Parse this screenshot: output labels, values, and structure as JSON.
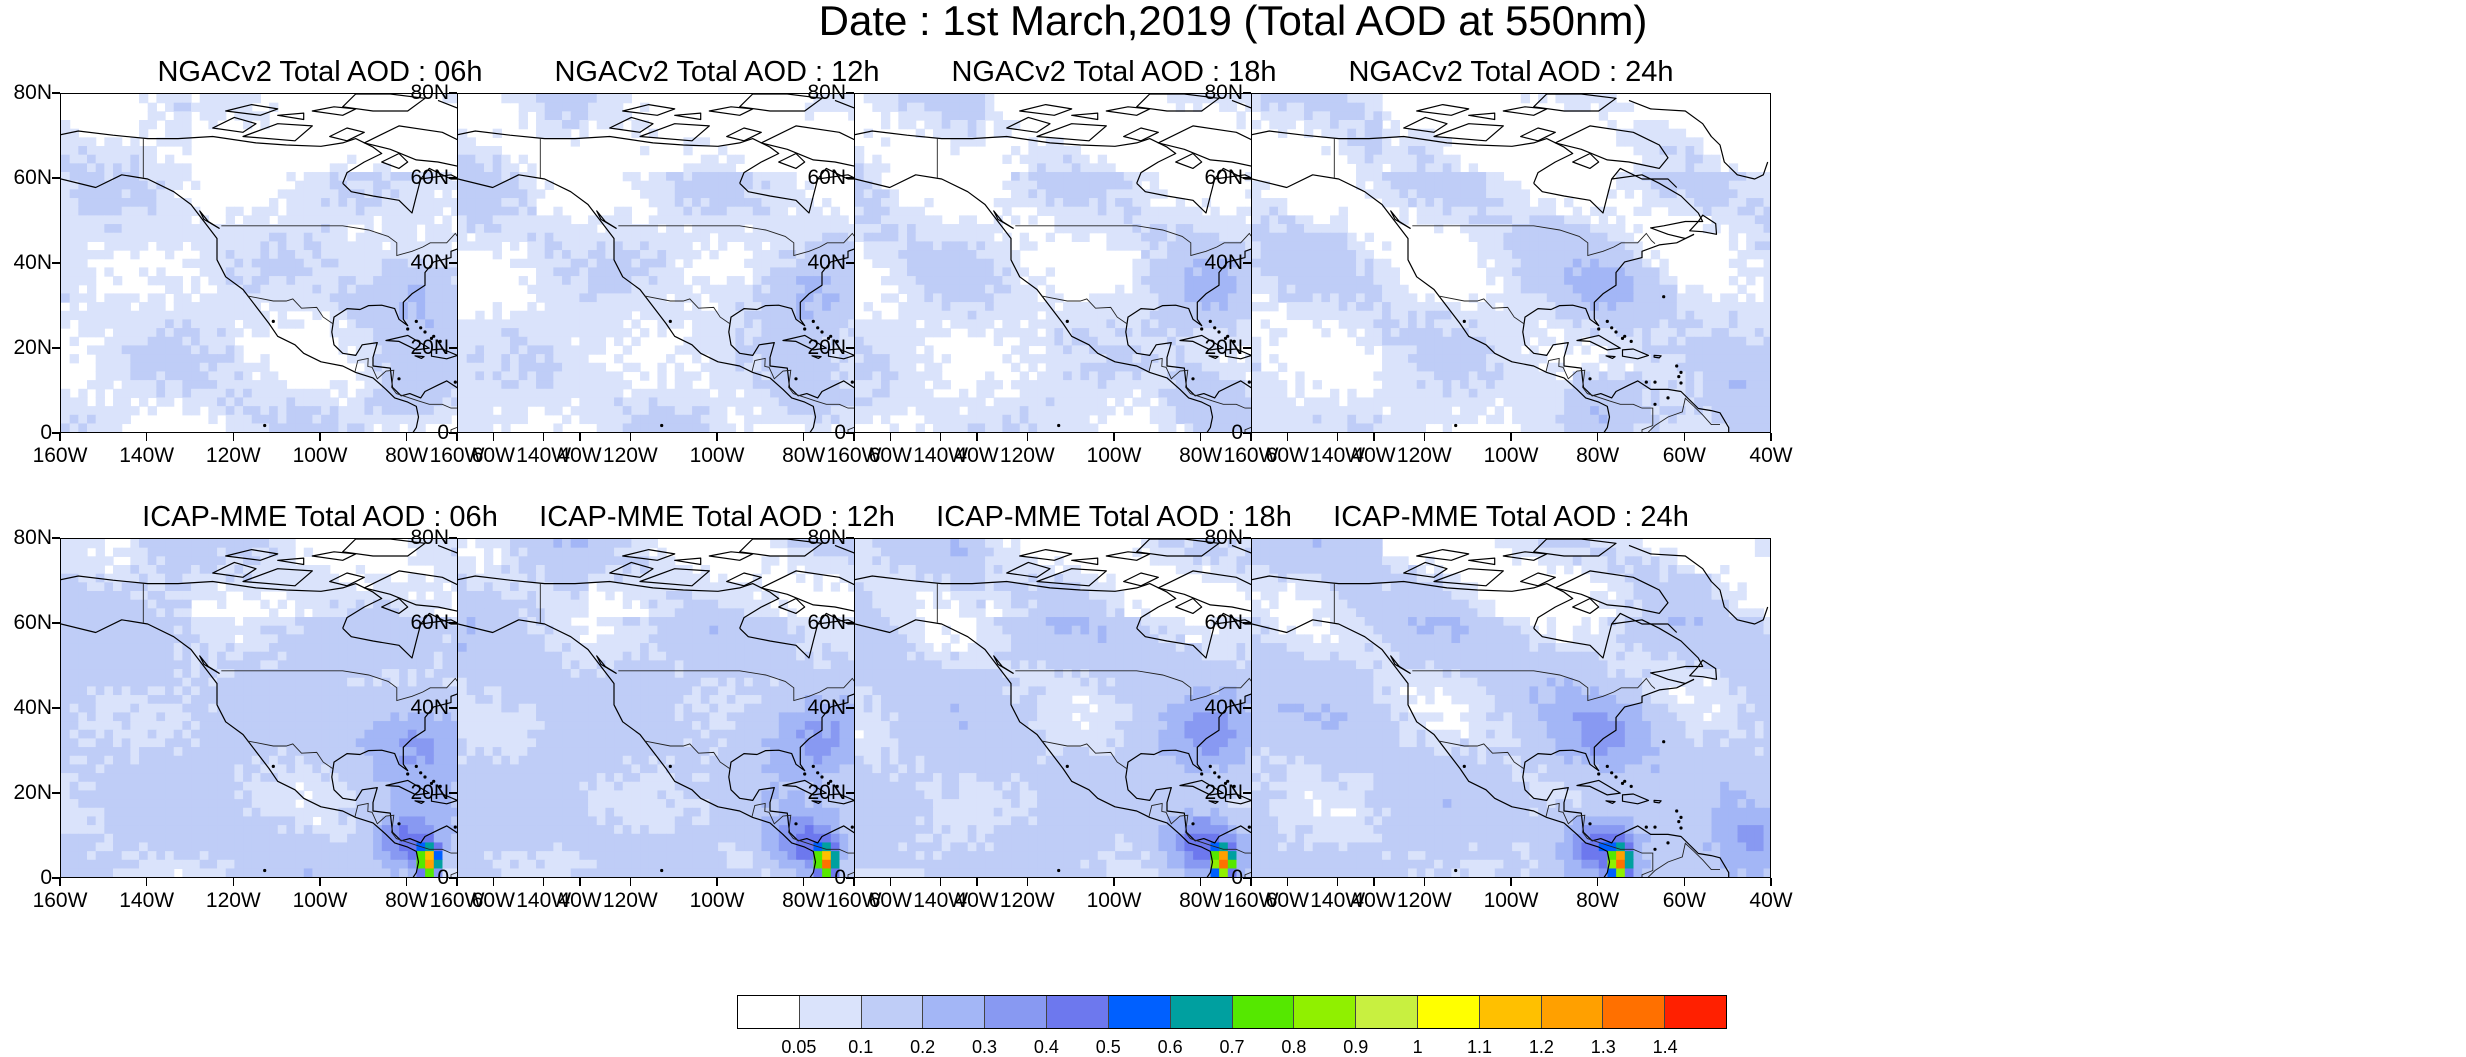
{
  "figure": {
    "title": "Date : 1st March,2019 (Total AOD at 550nm)"
  },
  "panels": [
    {
      "title": "NGACv2 Total AOD : 06h",
      "model": "NGACv2",
      "hour": "06h"
    },
    {
      "title": "NGACv2 Total AOD : 12h",
      "model": "NGACv2",
      "hour": "12h"
    },
    {
      "title": "NGACv2 Total AOD : 18h",
      "model": "NGACv2",
      "hour": "18h"
    },
    {
      "title": "NGACv2 Total AOD : 24h",
      "model": "NGACv2",
      "hour": "24h"
    },
    {
      "title": "ICAP-MME Total AOD : 06h",
      "model": "ICAP-MME",
      "hour": "06h"
    },
    {
      "title": "ICAP-MME Total AOD : 12h",
      "model": "ICAP-MME",
      "hour": "12h"
    },
    {
      "title": "ICAP-MME Total AOD : 18h",
      "model": "ICAP-MME",
      "hour": "18h"
    },
    {
      "title": "ICAP-MME Total AOD : 24h",
      "model": "ICAP-MME",
      "hour": "24h"
    }
  ],
  "axes": {
    "lat_labels": [
      "80N",
      "60N",
      "40N",
      "20N",
      "0"
    ],
    "lon_labels": [
      "160W",
      "140W",
      "120W",
      "100W",
      "80W",
      "60W",
      "40W"
    ]
  },
  "colorbar": {
    "labels": [
      "0.05",
      "0.1",
      "0.2",
      "0.3",
      "0.4",
      "0.5",
      "0.6",
      "0.7",
      "0.8",
      "0.9",
      "1",
      "1.1",
      "1.2",
      "1.3",
      "1.4"
    ],
    "colors": [
      "#ffffff",
      "#dae3fb",
      "#bfcdf7",
      "#a3b6f6",
      "#8899f2",
      "#6d78ee",
      "#0060ff",
      "#00a0a0",
      "#55e800",
      "#90f000",
      "#c8f040",
      "#ffff00",
      "#ffc000",
      "#ffa000",
      "#ff7000",
      "#ff2000"
    ]
  }
}
